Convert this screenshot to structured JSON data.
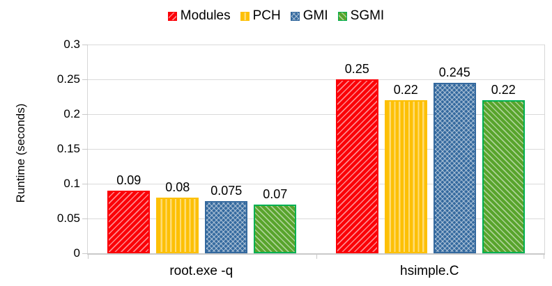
{
  "chart_data": {
    "type": "bar",
    "title": "",
    "xlabel": "",
    "ylabel": "Runtime (seconds)",
    "ylim": [
      0,
      0.3
    ],
    "yticks": [
      0,
      0.05,
      0.1,
      0.15,
      0.2,
      0.25,
      0.3
    ],
    "ytick_labels": [
      "0",
      "0.05",
      "0.1",
      "0.15",
      "0.2",
      "0.25",
      "0.3"
    ],
    "categories": [
      "root.exe -q",
      "hsimple.C"
    ],
    "series": [
      {
        "name": "Modules",
        "values": [
          0.09,
          0.25
        ],
        "labels": [
          "0.09",
          "0.25"
        ],
        "color": "#fb0007",
        "border": "#fb0007",
        "pattern": "diag-up"
      },
      {
        "name": "PCH",
        "values": [
          0.08,
          0.22
        ],
        "labels": [
          "0.08",
          "0.22"
        ],
        "color": "#fdc006",
        "border": "#fdc006",
        "pattern": "vertical"
      },
      {
        "name": "GMI",
        "values": [
          0.075,
          0.245
        ],
        "labels": [
          "0.075",
          "0.245"
        ],
        "color": "#34699e",
        "border": "#34699e",
        "pattern": "cross"
      },
      {
        "name": "SGMI",
        "values": [
          0.07,
          0.22
        ],
        "labels": [
          "0.07",
          "0.22"
        ],
        "color": "#58a42c",
        "border": "#00b052",
        "pattern": "diag-down"
      }
    ],
    "legend_position": "top",
    "grid": true,
    "colors": {
      "gridline": "#dadada",
      "axis_line": "#c9c9c9",
      "text": "#000000",
      "background": "#ffffff"
    }
  }
}
